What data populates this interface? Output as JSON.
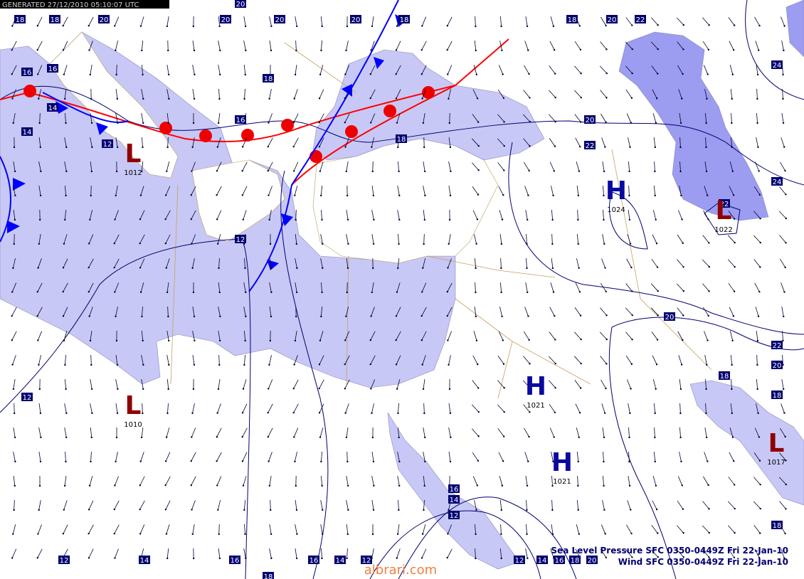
{
  "header": {
    "generated": "GENERATED 27/12/2010 05:10:07 UTC"
  },
  "isobar_labels": [
    "18",
    "18",
    "20",
    "20",
    "20",
    "20",
    "20",
    "18",
    "18",
    "20",
    "22",
    "16",
    "16",
    "18",
    "14",
    "14",
    "12",
    "16",
    "18",
    "20",
    "22",
    "24",
    "24",
    "22",
    "12",
    "20",
    "22",
    "20",
    "18",
    "18",
    "12",
    "16",
    "14",
    "12",
    "18",
    "12",
    "14",
    "16",
    "16",
    "14",
    "12",
    "12",
    "14",
    "16",
    "18",
    "20",
    "18"
  ],
  "pressure_centers": [
    {
      "symbol": "L",
      "value": "1012"
    },
    {
      "symbol": "L",
      "value": "1010"
    },
    {
      "symbol": "H",
      "value": "1021"
    },
    {
      "symbol": "H",
      "value": "1021"
    },
    {
      "symbol": "H",
      "value": "1024"
    },
    {
      "symbol": "L",
      "value": "1022"
    },
    {
      "symbol": "L",
      "value": "1017"
    }
  ],
  "footer": {
    "pressure": "Sea Level Pressure SFC 0350-0449Z Fri 22-Jan-10",
    "wind": "Wind SFC 0350-0449Z Fri 22-Jan-10"
  },
  "watermark": "albrari.com"
}
